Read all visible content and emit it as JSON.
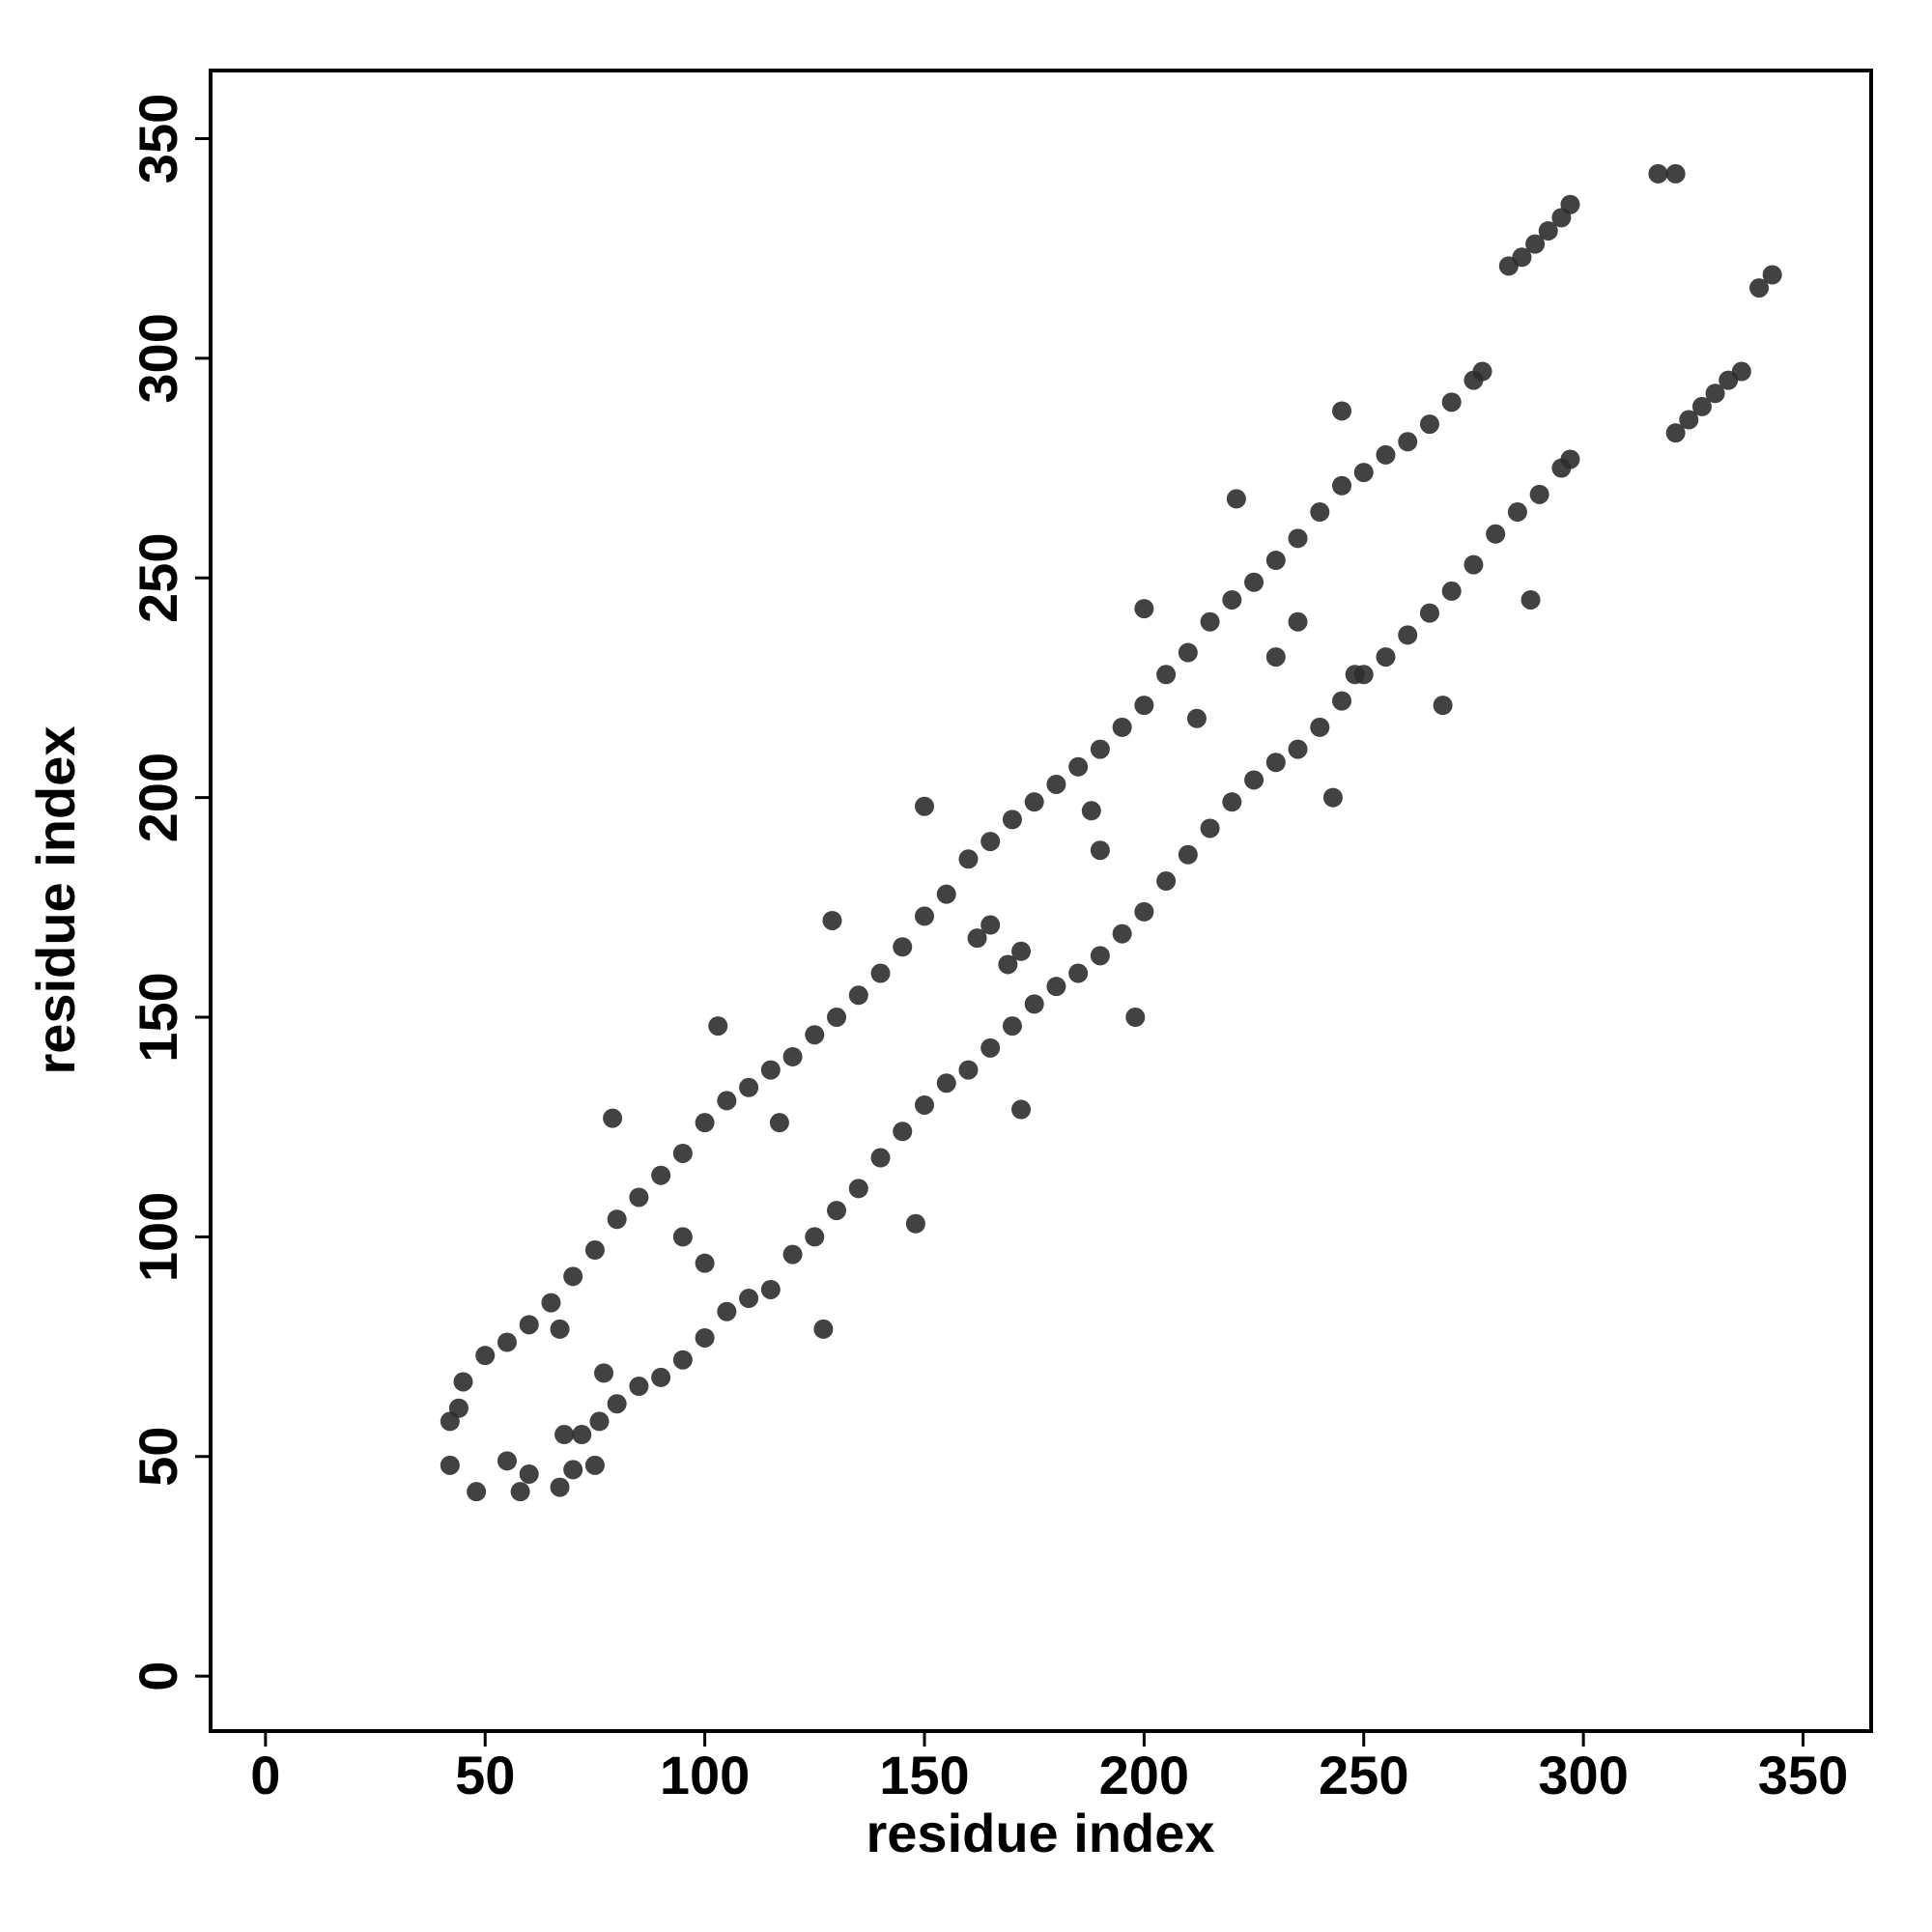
{
  "chart_data": {
    "type": "scatter",
    "xlabel": "residue index",
    "ylabel": "residue index",
    "xlim": [
      -12.5,
      365.5
    ],
    "ylim": [
      -12.5,
      365.5
    ],
    "xticks": [
      0,
      50,
      100,
      150,
      200,
      250,
      300,
      350
    ],
    "yticks": [
      0,
      50,
      100,
      150,
      200,
      250,
      300,
      350
    ],
    "color": "#2e2e2e",
    "x": [
      45,
      50,
      55,
      60,
      65,
      70,
      75,
      80,
      85,
      90,
      95,
      100,
      105,
      110,
      115,
      120,
      125,
      130,
      135,
      140,
      145,
      150,
      155,
      160,
      165,
      170,
      175,
      180,
      185,
      190,
      195,
      200,
      205,
      210,
      215,
      220,
      225,
      230,
      235,
      240,
      245,
      250,
      255,
      260,
      265,
      270,
      275,
      277,
      68,
      72,
      76,
      80,
      85,
      90,
      95,
      100,
      105,
      110,
      115,
      120,
      125,
      130,
      135,
      140,
      145,
      150,
      155,
      160,
      165,
      170,
      175,
      180,
      185,
      190,
      195,
      200,
      205,
      210,
      215,
      220,
      225,
      230,
      235,
      240,
      245,
      250,
      255,
      260,
      265,
      270,
      275,
      280,
      285,
      290,
      295,
      297,
      283,
      286,
      289,
      292,
      295,
      297,
      321,
      324,
      327,
      330,
      333,
      336,
      317,
      321,
      340,
      343,
      42,
      42,
      48,
      58,
      44,
      55,
      60,
      67,
      67,
      70,
      75,
      77,
      79,
      95,
      100,
      103,
      117,
      127,
      129,
      150,
      148,
      162,
      165,
      169,
      172,
      172,
      188,
      190,
      198,
      200,
      212,
      221,
      230,
      235,
      243,
      245,
      248,
      268,
      288
    ],
    "values": [
      67,
      73,
      76,
      80,
      85,
      91,
      97,
      104,
      109,
      114,
      119,
      126,
      131,
      134,
      138,
      141,
      146,
      150,
      155,
      160,
      166,
      173,
      178,
      186,
      190,
      195,
      199,
      203,
      207,
      211,
      216,
      221,
      228,
      233,
      240,
      245,
      249,
      254,
      259,
      265,
      271,
      274,
      278,
      281,
      285,
      290,
      295,
      297,
      55,
      55,
      58,
      62,
      66,
      68,
      72,
      77,
      83,
      86,
      88,
      96,
      100,
      106,
      111,
      118,
      124,
      130,
      135,
      138,
      143,
      148,
      153,
      157,
      160,
      164,
      169,
      174,
      181,
      187,
      193,
      199,
      204,
      208,
      211,
      216,
      222,
      228,
      232,
      237,
      242,
      247,
      253,
      260,
      265,
      269,
      275,
      277,
      321,
      323,
      326,
      329,
      332,
      335,
      283,
      286,
      289,
      292,
      295,
      297,
      342,
      342,
      316,
      319,
      58,
      48,
      42,
      42,
      61,
      49,
      46,
      43,
      79,
      47,
      48,
      69,
      127,
      100,
      94,
      148,
      126,
      79,
      172,
      198,
      103,
      168,
      171,
      162,
      129,
      165,
      197,
      188,
      150,
      243,
      218,
      268,
      232,
      240,
      200,
      288,
      228,
      221,
      245
    ]
  }
}
